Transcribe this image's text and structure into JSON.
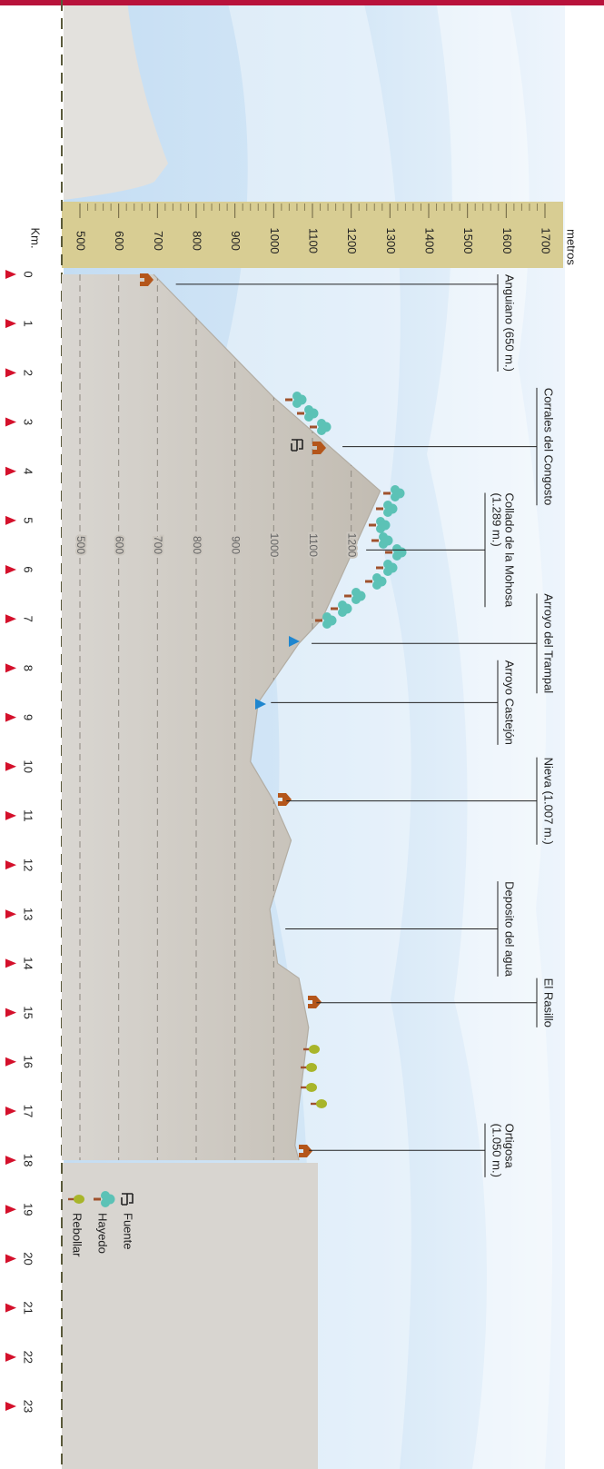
{
  "chart_data": {
    "type": "area",
    "x_label": "Km.",
    "y_label": "metros",
    "xlim": [
      0,
      23
    ],
    "xticks": [
      0,
      1,
      2,
      3,
      4,
      5,
      6,
      7,
      8,
      9,
      10,
      11,
      12,
      13,
      14,
      15,
      16,
      17,
      18,
      19,
      20,
      21,
      22,
      23
    ],
    "ylim": [
      500,
      1700
    ],
    "yticks": [
      500,
      600,
      700,
      800,
      900,
      1000,
      1100,
      1200,
      1300,
      1400,
      1500,
      1600,
      1700
    ],
    "x": [
      0,
      2.5,
      4.4,
      7.0,
      7.5,
      8.7,
      9.9,
      10.7,
      11.5,
      12.9,
      14.0,
      14.3,
      15.3,
      16.9,
      17.7,
      18.0
    ],
    "values": [
      690,
      1000,
      1275,
      1125,
      1065,
      960,
      940,
      1000,
      1045,
      990,
      1010,
      1065,
      1090,
      1065,
      1055,
      1065
    ],
    "color": "#cbc6be",
    "grid": true,
    "waypoints": [
      {
        "label": [
          "Anguiano (650 m.)"
        ],
        "km": 0.2
      },
      {
        "label": [
          "Corrales del Congosto"
        ],
        "km": 3.5
      },
      {
        "label": [
          "Collado de la Mohosa",
          "(1.289 m.)"
        ],
        "km": 5.6
      },
      {
        "label": [
          "Arroyo del Trampal"
        ],
        "km": 7.5
      },
      {
        "label": [
          "Arroyo Castejón"
        ],
        "km": 8.7
      },
      {
        "label": [
          "Nieva (1.007 m.)"
        ],
        "km": 10.7
      },
      {
        "label": [
          "Deposito del agua"
        ],
        "km": 13.3
      },
      {
        "label": [
          "El Rasillo"
        ],
        "km": 14.8
      },
      {
        "label": [
          "Ortigosa",
          "(1.050 m.)"
        ],
        "km": 17.8
      }
    ],
    "legend": [
      "Fuente",
      "Hayedo",
      "Rebollar"
    ]
  }
}
